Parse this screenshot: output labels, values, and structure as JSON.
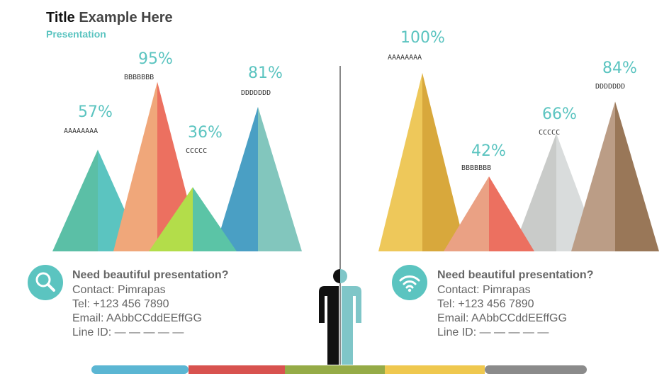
{
  "title": {
    "bold": "Title",
    "rest": "Example Here"
  },
  "subtitle": "Presentation",
  "chart_data": [
    {
      "type": "bar",
      "categories": [
        "AAAAAAAA",
        "BBBBBBB",
        "CCCCC",
        "DDDDDDD"
      ],
      "values": [
        57,
        95,
        36,
        81
      ],
      "labels": [
        "57%",
        "95%",
        "36%",
        "81%"
      ]
    },
    {
      "type": "bar",
      "categories": [
        "AAAAAAAA",
        "BBBBBBB",
        "CCCCC",
        "DDDDDDD"
      ],
      "values": [
        100,
        42,
        66,
        84
      ],
      "labels": [
        "100%",
        "42%",
        "66%",
        "84%"
      ]
    }
  ],
  "colors": {
    "left": [
      [
        "#5bbfa6",
        "#5bc4c0"
      ],
      [
        "#f0a77a",
        "#ec7060"
      ],
      [
        "#b3dd4a",
        "#5bc4a6"
      ],
      [
        "#4a9fc4",
        "#82c6bd"
      ]
    ],
    "right": [
      [
        "#eec85a",
        "#d8a83c"
      ],
      [
        "#eaa184",
        "#ec7060"
      ],
      [
        "#c9cbc9",
        "#d9dcdc"
      ],
      [
        "#bb9d86",
        "#997758"
      ]
    ],
    "accent": "#5bc4c0"
  },
  "contact_left": {
    "icon": "search-icon",
    "heading": "Need beautiful presentation?",
    "name": "Contact: Pimrapas",
    "tel": "Tel: +123 456 7890",
    "email": "Email: AAbbCCddEEffGG",
    "line": "Line ID: — — — — —"
  },
  "contact_right": {
    "icon": "wifi-icon",
    "heading": "Need beautiful presentation?",
    "name": "Contact: Pimrapas",
    "tel": "Tel: +123 456 7890",
    "email": "Email: AAbbCCddEEffGG",
    "line": "Line ID: — — — — —"
  },
  "bottom_bar": [
    "#5bb6d3",
    "#d8524f",
    "#95ab47",
    "#efc84f",
    "#8b8b8b"
  ]
}
